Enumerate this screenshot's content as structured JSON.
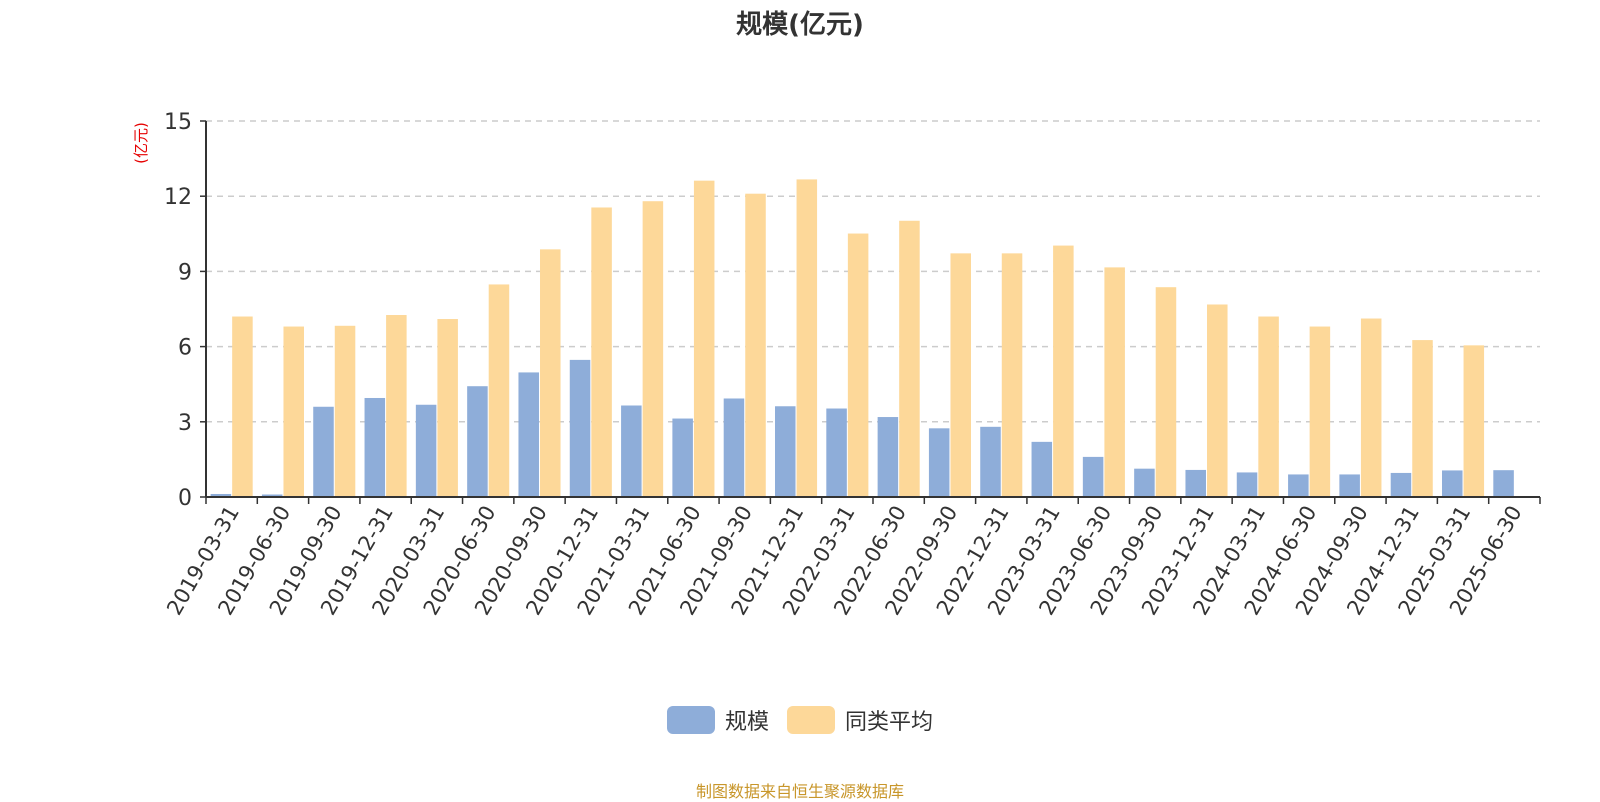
{
  "source_note": "制图数据来自恒生聚源数据库",
  "colors": {
    "scale": "#8eadd9",
    "peer_avg": "#fdd899",
    "axis_unit": "#e60000",
    "grid": "#cccccc",
    "text": "#333333"
  },
  "chart_data": {
    "type": "bar",
    "title": "规模(亿元)",
    "ylabel": "(亿元)",
    "xlabel": "",
    "ylim": [
      0,
      15
    ],
    "yticks": [
      0,
      3,
      6,
      9,
      12,
      15
    ],
    "grid": true,
    "legend_position": "bottom",
    "categories": [
      "2019-03-31",
      "2019-06-30",
      "2019-09-30",
      "2019-12-31",
      "2020-03-31",
      "2020-06-30",
      "2020-09-30",
      "2020-12-31",
      "2021-03-31",
      "2021-06-30",
      "2021-09-30",
      "2021-12-31",
      "2022-03-31",
      "2022-06-30",
      "2022-09-30",
      "2022-12-31",
      "2023-03-31",
      "2023-06-30",
      "2023-09-30",
      "2023-12-31",
      "2024-03-31",
      "2024-06-30",
      "2024-09-30",
      "2024-12-31",
      "2025-03-31",
      "2025-06-30"
    ],
    "series": [
      {
        "name": "规模",
        "color": "#8eadd9",
        "values": [
          0.12,
          0.1,
          3.6,
          3.95,
          3.68,
          4.42,
          4.97,
          5.47,
          3.65,
          3.13,
          3.93,
          3.62,
          3.53,
          3.19,
          2.74,
          2.8,
          2.2,
          1.6,
          1.13,
          1.08,
          0.98,
          0.9,
          0.9,
          0.96,
          1.06,
          1.07
        ]
      },
      {
        "name": "同类平均",
        "color": "#fdd899",
        "values": [
          7.2,
          6.8,
          6.83,
          7.26,
          7.1,
          8.48,
          9.88,
          11.55,
          11.8,
          12.62,
          12.1,
          12.67,
          10.51,
          11.02,
          9.72,
          9.72,
          10.03,
          9.16,
          8.37,
          7.68,
          7.2,
          6.8,
          7.12,
          6.26,
          6.05,
          null
        ]
      }
    ]
  }
}
